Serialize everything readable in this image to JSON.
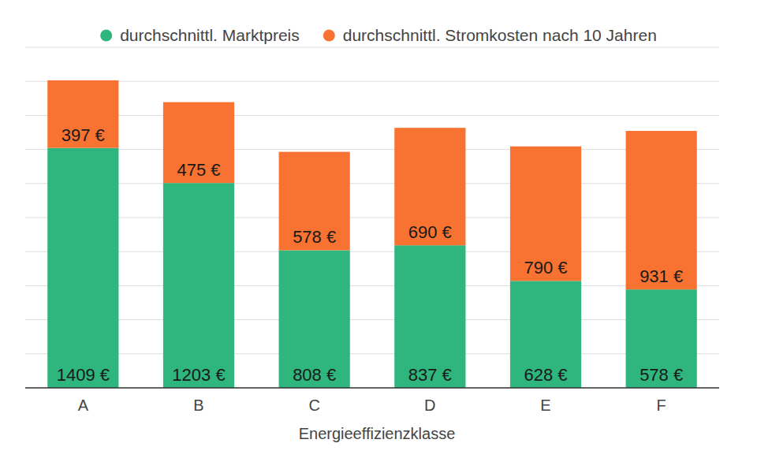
{
  "chart_data": {
    "type": "bar",
    "stacked": true,
    "x_label": "Energieeffizienzklasse",
    "categories": [
      "A",
      "B",
      "C",
      "D",
      "E",
      "F"
    ],
    "series": [
      {
        "name": "durchschnittl. Marktpreis",
        "color": "#2fb57e",
        "values": [
          1409,
          1203,
          808,
          837,
          628,
          578
        ],
        "value_labels": [
          "1409 €",
          "1203 €",
          "808 €",
          "837 €",
          "628 €",
          "578 €"
        ]
      },
      {
        "name": "durchschnittl. Stromkosten nach 10 Jahren",
        "color": "#f87331",
        "values": [
          397,
          475,
          578,
          690,
          790,
          931
        ],
        "value_labels": [
          "397 €",
          "475 €",
          "578 €",
          "690 €",
          "790 €",
          "931 €"
        ]
      }
    ],
    "ylim": [
      0,
      2000
    ],
    "yticks": [
      0,
      200,
      400,
      600,
      800,
      1000,
      1200,
      1400,
      1600,
      1800,
      2000
    ],
    "grid": true,
    "tick_labels": "x",
    "legend": "top",
    "data_labels": true
  }
}
